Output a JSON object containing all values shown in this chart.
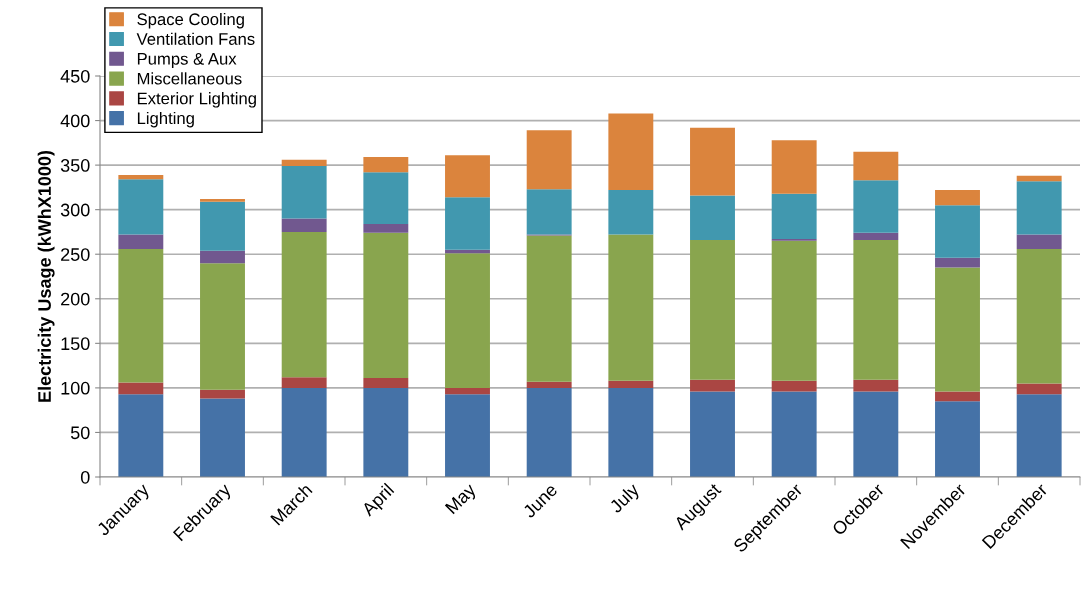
{
  "chart_data": {
    "type": "bar",
    "stacked": true,
    "ylabel": "Electricity Usage (kWhX1000)",
    "categories": [
      "January",
      "February",
      "March",
      "April",
      "May",
      "June",
      "July",
      "August",
      "September",
      "October",
      "November",
      "December"
    ],
    "series": [
      {
        "name": "Lighting",
        "color": "#4572a7",
        "values": [
          93,
          88,
          100,
          100,
          93,
          100,
          100,
          96,
          96,
          96,
          85,
          93
        ]
      },
      {
        "name": "Exterior Lighting",
        "color": "#aa4643",
        "values": [
          13,
          10,
          12,
          11,
          7,
          7,
          8,
          13,
          12,
          13,
          11,
          12
        ]
      },
      {
        "name": "Miscellaneous",
        "color": "#89a54e",
        "values": [
          150,
          142,
          163,
          163,
          151,
          164,
          164,
          157,
          157,
          157,
          139,
          151
        ]
      },
      {
        "name": "Pumps & Aux",
        "color": "#71588f",
        "values": [
          16,
          14,
          15,
          10,
          4,
          1,
          0,
          0,
          2,
          8,
          11,
          16
        ]
      },
      {
        "name": "Ventilation Fans",
        "color": "#4198af",
        "values": [
          62,
          55,
          59,
          58,
          59,
          51,
          50,
          50,
          51,
          59,
          59,
          60
        ]
      },
      {
        "name": "Space Cooling",
        "color": "#db843d",
        "values": [
          5,
          3,
          7,
          17,
          47,
          66,
          86,
          76,
          60,
          32,
          17,
          6
        ]
      }
    ],
    "ylim": [
      0,
      450
    ],
    "yticks": [
      0,
      50,
      100,
      150,
      200,
      250,
      300,
      350,
      400,
      450
    ],
    "grid": "y",
    "legend": "top left"
  }
}
